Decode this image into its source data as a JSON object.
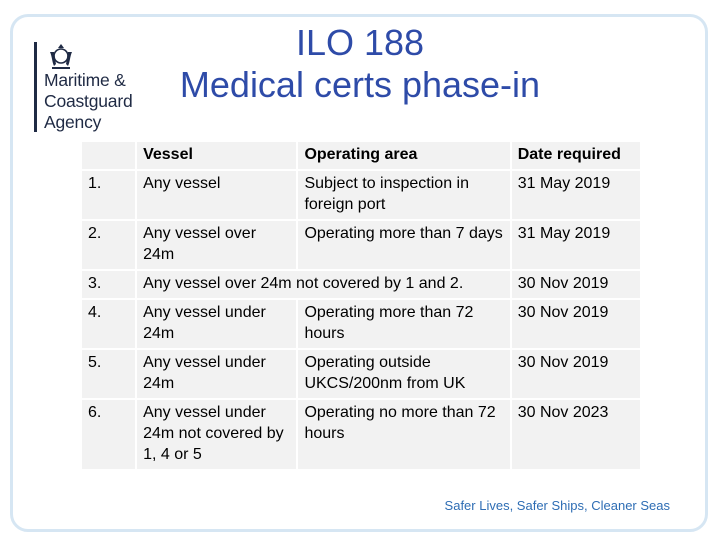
{
  "logo": {
    "icon": "royal-crest-icon",
    "lines": [
      "Maritime &",
      "Coastguard",
      "Agency"
    ]
  },
  "title": {
    "line1": "ILO 188",
    "line2": "Medical certs phase-in"
  },
  "table": {
    "headers": [
      "",
      "Vessel",
      "Operating area",
      "Date required"
    ],
    "rows": [
      {
        "num": "1.",
        "vessel": "Any vessel",
        "area": "Subject to inspection in foreign port",
        "date": "31 May 2019"
      },
      {
        "num": "2.",
        "vessel": "Any vessel over 24m",
        "area": "Operating more than 7 days",
        "date": "31 May 2019"
      },
      {
        "num": "3.",
        "merged": "Any vessel over 24m not covered by 1 and 2.",
        "date": "30 Nov 2019"
      },
      {
        "num": "4.",
        "vessel": "Any vessel under 24m",
        "area": "Operating more than 72 hours",
        "date": "30 Nov 2019"
      },
      {
        "num": "5.",
        "vessel": "Any vessel under 24m",
        "area": "Operating outside UKCS/200nm from UK",
        "date": "30 Nov 2019"
      },
      {
        "num": "6.",
        "vessel": "Any vessel under 24m not covered by 1, 4 or 5",
        "area": "Operating no more than 72 hours",
        "date": "30 Nov 2023"
      }
    ]
  },
  "tagline": "Safer Lives, Safer Ships, Cleaner Seas",
  "colors": {
    "title": "#2e4ba8",
    "frame": "#d6e6f3",
    "cell": "#f2f2f2",
    "tagline": "#2e6db4"
  }
}
